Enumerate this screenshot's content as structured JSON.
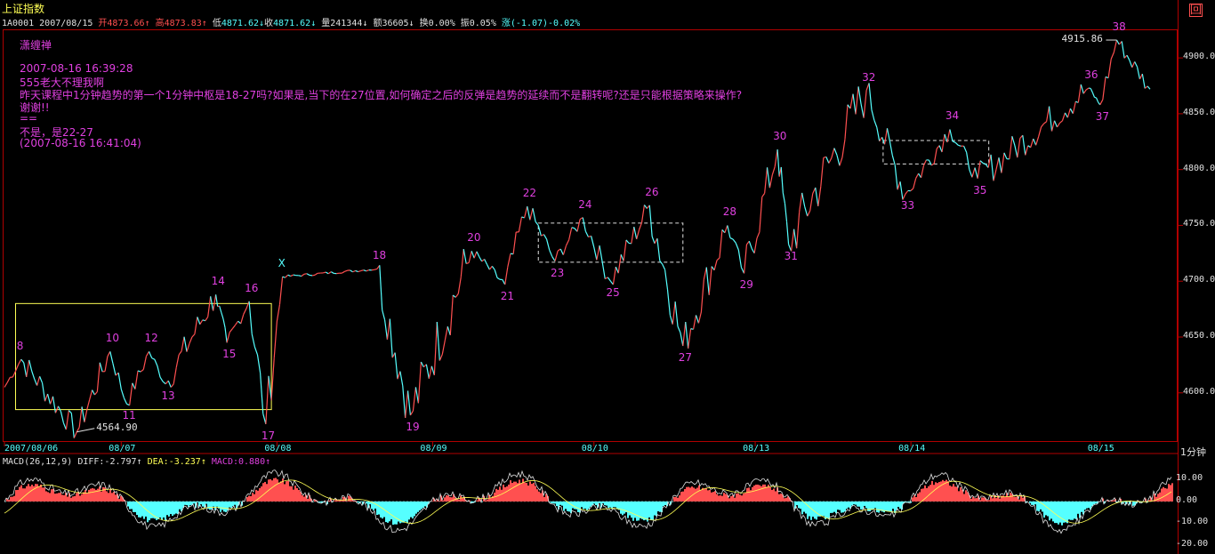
{
  "header": {
    "index_name": "上证指数",
    "code": "1A0001",
    "date": "2007/08/15",
    "open_label": "开",
    "open": "4873.66",
    "high_label": "高",
    "high": "4873.83",
    "low_label": "低",
    "low": "4871.62",
    "close_label": "收",
    "close": "4871.62",
    "volume_label": "量",
    "volume": "241344",
    "amount_label": "额",
    "amount": "36605",
    "turnover_label": "换",
    "turnover": "0.00%",
    "amplitude_label": "振",
    "amplitude": "0.05%",
    "change_label": "涨",
    "change": "(-1.07)-0.02%",
    "up_arrow": "↑",
    "down_arrow": "↓"
  },
  "corner_marker": "回",
  "comment": {
    "author": "潇缠禅",
    "timestamp": "2007-08-16 16:39:28",
    "line1": "555老大不理我啊",
    "line2": "昨天课程中1分钟趋势的第一个1分钟中枢是18-27吗?如果是,当下的在27位置,如何确定之后的反弹是趋势的延续而不是翻转呢?还是只能根据策略来操作?",
    "line3": "谢谢!!",
    "separator": "==",
    "reply": "不是，是22-27",
    "reply_time": "(2007-08-16 16:41:04)"
  },
  "period_label": "1分钟",
  "macd_header": {
    "name": "MACD(26,12,9)",
    "diff_label": "DIFF:",
    "diff": "-2.797",
    "dea_label": "DEA:",
    "dea": "-3.237",
    "macd_label": "MACD:",
    "macd": "0.880",
    "arrow": "↑"
  },
  "colors": {
    "up": "#ff5050",
    "down": "#55ffff",
    "label": "#e040e0",
    "frame": "#b00000",
    "yellow": "#ffff55",
    "white": "#e0e0e0"
  },
  "chart_data": [
    {
      "type": "line",
      "name": "price",
      "y_ticks": [
        4600,
        4650,
        4700,
        4750,
        4800,
        4850,
        4900
      ],
      "y_tick_labels": [
        "4600.00",
        "4650.00",
        "4700.00",
        "4750.00",
        "4800.00",
        "4850.00",
        "4900.00"
      ],
      "ylim": [
        4560,
        4920
      ],
      "x_labels": [
        "2007/08/06",
        "08/07",
        "08/08",
        "08/09",
        "08/10",
        "08/13",
        "08/14",
        "08/15"
      ],
      "x_label_index": [
        0,
        1,
        2,
        3,
        4,
        5,
        6,
        7
      ],
      "pivots": [
        {
          "label": "8",
          "x": 0.15,
          "y": 4630
        },
        {
          "label": "",
          "x": 0.65,
          "y": 4565
        },
        {
          "label": "10",
          "x": 0.95,
          "y": 4637
        },
        {
          "label": "11",
          "x": 1.1,
          "y": 4590
        },
        {
          "label": "12",
          "x": 1.3,
          "y": 4637
        },
        {
          "label": "13",
          "x": 1.45,
          "y": 4608
        },
        {
          "label": "14",
          "x": 1.9,
          "y": 4688
        },
        {
          "label": "15",
          "x": 2.0,
          "y": 4645
        },
        {
          "label": "16",
          "x": 2.2,
          "y": 4682
        },
        {
          "label": "17",
          "x": 2.35,
          "y": 4572
        },
        {
          "label": "X",
          "x": 2.5,
          "y": 4704
        },
        {
          "label": "18",
          "x": 3.35,
          "y": 4711
        },
        {
          "label": "19",
          "x": 3.65,
          "y": 4580
        },
        {
          "label": "20",
          "x": 4.2,
          "y": 4727
        },
        {
          "label": "21",
          "x": 4.5,
          "y": 4697
        },
        {
          "label": "22",
          "x": 4.7,
          "y": 4767
        },
        {
          "label": "23",
          "x": 4.95,
          "y": 4718
        },
        {
          "label": "24",
          "x": 5.2,
          "y": 4757
        },
        {
          "label": "25",
          "x": 5.45,
          "y": 4700
        },
        {
          "label": "26",
          "x": 5.8,
          "y": 4768
        },
        {
          "label": "27",
          "x": 6.1,
          "y": 4642
        },
        {
          "label": "28",
          "x": 6.5,
          "y": 4750
        },
        {
          "label": "29",
          "x": 6.65,
          "y": 4707
        },
        {
          "label": "30",
          "x": 6.95,
          "y": 4818
        },
        {
          "label": "31",
          "x": 7.05,
          "y": 4733
        },
        {
          "label": "32",
          "x": 7.75,
          "y": 4871
        },
        {
          "label": "33",
          "x": 8.1,
          "y": 4778
        },
        {
          "label": "34",
          "x": 8.5,
          "y": 4836
        },
        {
          "label": "35",
          "x": 8.75,
          "y": 4792
        },
        {
          "label": "36",
          "x": 9.75,
          "y": 4873
        },
        {
          "label": "37",
          "x": 9.85,
          "y": 4858
        },
        {
          "label": "38",
          "x": 10.0,
          "y": 4916
        },
        {
          "label": "",
          "x": 10.3,
          "y": 4872
        }
      ],
      "annotations": [
        "4564.90",
        "4915.86"
      ],
      "zhongshu_boxes": [
        {
          "x0": 0.1,
          "x1": 2.4,
          "y0": 4585,
          "y1": 4680,
          "style": "solid"
        },
        {
          "x0": 4.8,
          "x1": 6.1,
          "y0": 4717,
          "y1": 4752,
          "style": "dashed"
        },
        {
          "x0": 7.9,
          "x1": 8.85,
          "y0": 4805,
          "y1": 4826,
          "style": "dashed"
        }
      ],
      "grid": false
    },
    {
      "type": "bar",
      "name": "MACD",
      "y_ticks": [
        10,
        0,
        -10,
        -20
      ],
      "y_tick_labels": [
        "10.00",
        "0.00",
        "-10.00",
        "-20.00"
      ],
      "ylim": [
        -22,
        15
      ]
    }
  ]
}
